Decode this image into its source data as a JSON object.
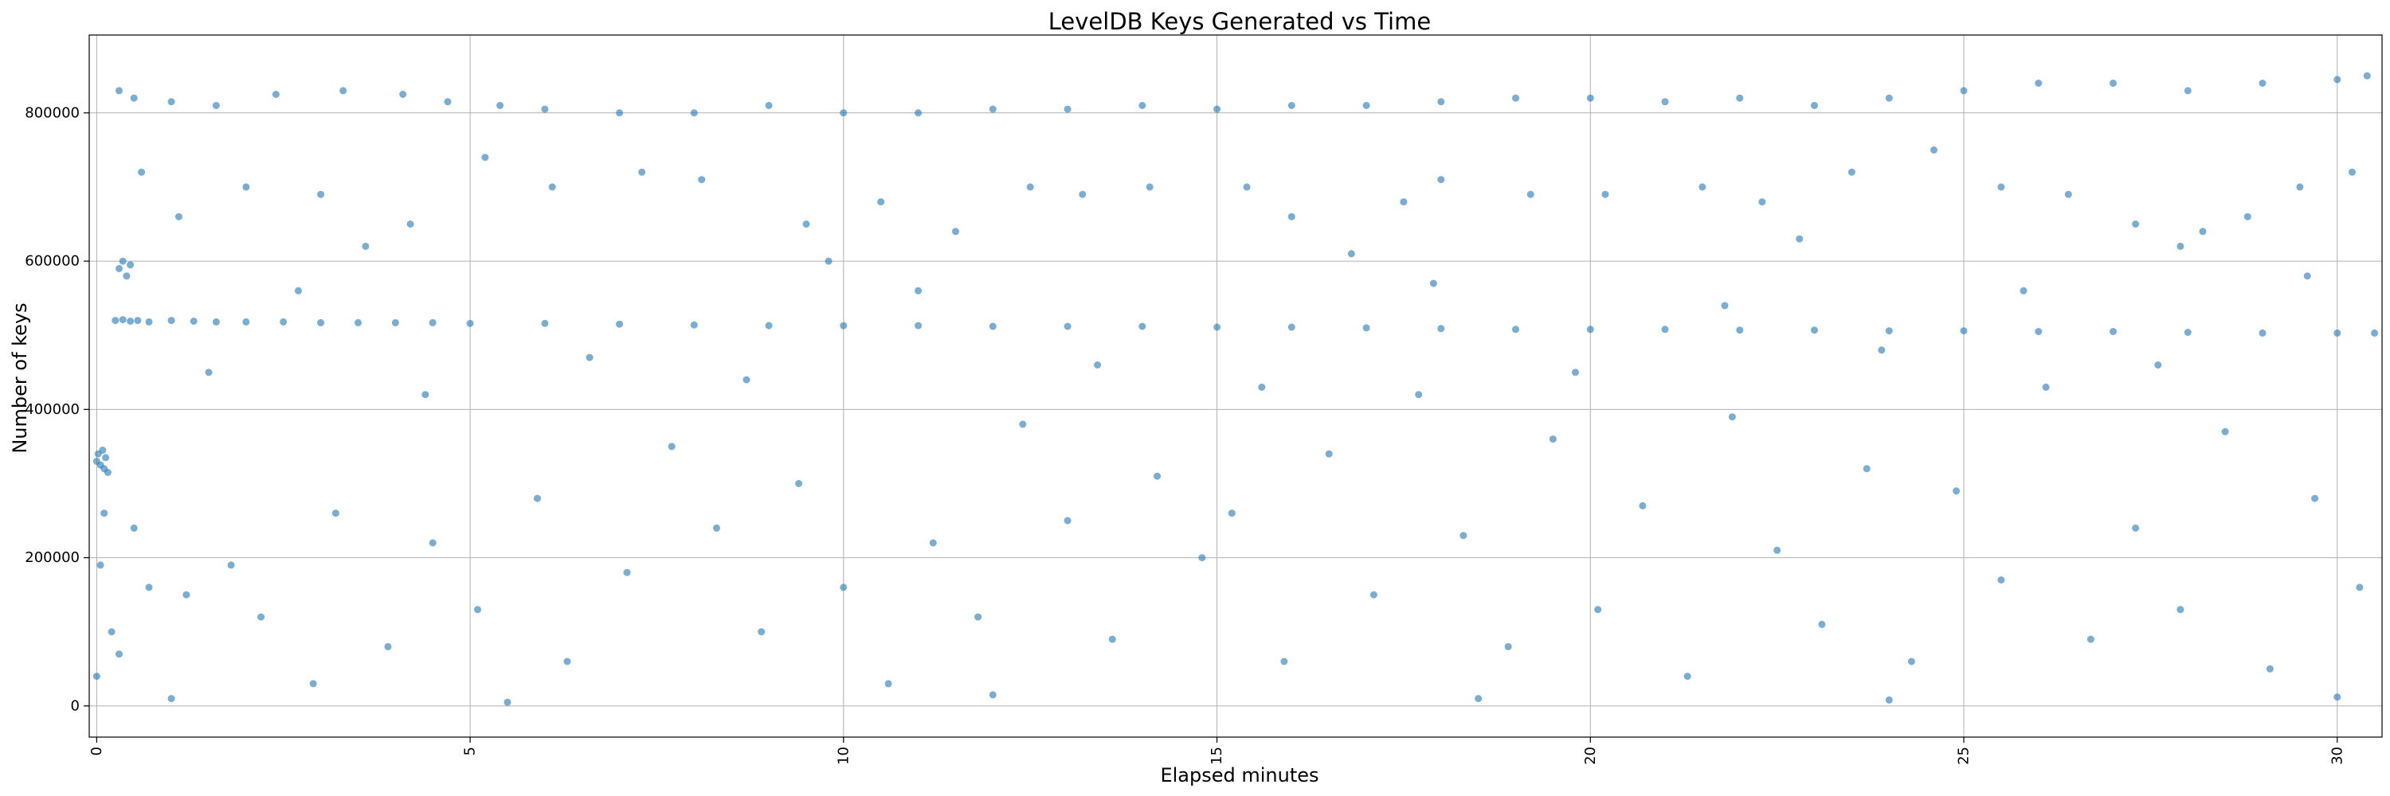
{
  "chart_data": {
    "type": "scatter",
    "title": "LevelDB Keys Generated vs Time",
    "xlabel": "Elapsed minutes",
    "ylabel": "Number of keys",
    "xlim": [
      -0.1,
      30.6
    ],
    "ylim": [
      -42000,
      905000
    ],
    "xticks": [
      0,
      5,
      10,
      15,
      20,
      25,
      30
    ],
    "yticks": [
      0,
      200000,
      400000,
      600000,
      800000
    ],
    "grid": true,
    "legend": "none",
    "marker_color": "#1f77b4",
    "marker_alpha": 0.6,
    "series": [
      {
        "points": [
          [
            0.0,
            330000
          ],
          [
            0.02,
            340000
          ],
          [
            0.05,
            325000
          ],
          [
            0.08,
            345000
          ],
          [
            0.1,
            320000
          ],
          [
            0.12,
            335000
          ],
          [
            0.15,
            315000
          ],
          [
            0.0,
            40000
          ],
          [
            0.05,
            190000
          ],
          [
            0.1,
            260000
          ],
          [
            0.25,
            520000
          ],
          [
            0.35,
            521000
          ],
          [
            0.45,
            519000
          ],
          [
            0.55,
            520000
          ],
          [
            0.7,
            518000
          ],
          [
            1.0,
            520000
          ],
          [
            1.3,
            519000
          ],
          [
            1.6,
            518000
          ],
          [
            2.0,
            518000
          ],
          [
            2.5,
            518000
          ],
          [
            3.0,
            517000
          ],
          [
            3.5,
            517000
          ],
          [
            4.0,
            517000
          ],
          [
            4.5,
            517000
          ],
          [
            5.0,
            516000
          ],
          [
            6.0,
            516000
          ],
          [
            7.0,
            515000
          ],
          [
            8.0,
            514000
          ],
          [
            9.0,
            513000
          ],
          [
            10.0,
            513000
          ],
          [
            11.0,
            513000
          ],
          [
            12.0,
            512000
          ],
          [
            13.0,
            512000
          ],
          [
            14.0,
            512000
          ],
          [
            15.0,
            511000
          ],
          [
            16.0,
            511000
          ],
          [
            17.0,
            510000
          ],
          [
            18.0,
            509000
          ],
          [
            19.0,
            508000
          ],
          [
            20.0,
            508000
          ],
          [
            21.0,
            508000
          ],
          [
            22.0,
            507000
          ],
          [
            23.0,
            507000
          ],
          [
            24.0,
            506000
          ],
          [
            25.0,
            506000
          ],
          [
            26.0,
            505000
          ],
          [
            27.0,
            505000
          ],
          [
            28.0,
            504000
          ],
          [
            29.0,
            503000
          ],
          [
            30.0,
            503000
          ],
          [
            30.5,
            503000
          ],
          [
            0.3,
            590000
          ],
          [
            0.35,
            600000
          ],
          [
            0.4,
            580000
          ],
          [
            0.45,
            595000
          ],
          [
            0.3,
            830000
          ],
          [
            0.5,
            820000
          ],
          [
            1.0,
            815000
          ],
          [
            1.6,
            810000
          ],
          [
            2.4,
            825000
          ],
          [
            3.3,
            830000
          ],
          [
            4.1,
            825000
          ],
          [
            4.7,
            815000
          ],
          [
            5.4,
            810000
          ],
          [
            6.0,
            805000
          ],
          [
            7.0,
            800000
          ],
          [
            8.0,
            800000
          ],
          [
            9.0,
            810000
          ],
          [
            10.0,
            800000
          ],
          [
            11.0,
            800000
          ],
          [
            12.0,
            805000
          ],
          [
            13.0,
            805000
          ],
          [
            14.0,
            810000
          ],
          [
            15.0,
            805000
          ],
          [
            16.0,
            810000
          ],
          [
            17.0,
            810000
          ],
          [
            18.0,
            815000
          ],
          [
            19.0,
            820000
          ],
          [
            20.0,
            820000
          ],
          [
            21.0,
            815000
          ],
          [
            22.0,
            820000
          ],
          [
            23.0,
            810000
          ],
          [
            24.0,
            820000
          ],
          [
            25.0,
            830000
          ],
          [
            26.0,
            840000
          ],
          [
            27.0,
            840000
          ],
          [
            28.0,
            830000
          ],
          [
            29.0,
            840000
          ],
          [
            30.0,
            845000
          ],
          [
            30.4,
            850000
          ],
          [
            0.6,
            720000
          ],
          [
            1.1,
            660000
          ],
          [
            2.0,
            700000
          ],
          [
            3.0,
            690000
          ],
          [
            4.2,
            650000
          ],
          [
            5.2,
            740000
          ],
          [
            6.1,
            700000
          ],
          [
            7.3,
            720000
          ],
          [
            8.1,
            710000
          ],
          [
            9.5,
            650000
          ],
          [
            10.5,
            680000
          ],
          [
            11.5,
            640000
          ],
          [
            12.5,
            700000
          ],
          [
            13.2,
            690000
          ],
          [
            14.1,
            700000
          ],
          [
            15.4,
            700000
          ],
          [
            16.0,
            660000
          ],
          [
            17.5,
            680000
          ],
          [
            18.0,
            710000
          ],
          [
            19.2,
            690000
          ],
          [
            20.2,
            690000
          ],
          [
            21.5,
            700000
          ],
          [
            22.3,
            680000
          ],
          [
            23.5,
            720000
          ],
          [
            24.6,
            750000
          ],
          [
            25.5,
            700000
          ],
          [
            26.4,
            690000
          ],
          [
            27.3,
            650000
          ],
          [
            27.9,
            620000
          ],
          [
            28.8,
            660000
          ],
          [
            29.5,
            700000
          ],
          [
            30.2,
            720000
          ],
          [
            0.2,
            100000
          ],
          [
            0.3,
            70000
          ],
          [
            0.5,
            240000
          ],
          [
            0.7,
            160000
          ],
          [
            1.2,
            150000
          ],
          [
            1.8,
            190000
          ],
          [
            2.2,
            120000
          ],
          [
            2.9,
            30000
          ],
          [
            3.2,
            260000
          ],
          [
            3.9,
            80000
          ],
          [
            4.5,
            220000
          ],
          [
            5.1,
            130000
          ],
          [
            5.9,
            280000
          ],
          [
            6.3,
            60000
          ],
          [
            7.1,
            180000
          ],
          [
            7.7,
            350000
          ],
          [
            8.3,
            240000
          ],
          [
            8.9,
            100000
          ],
          [
            9.4,
            300000
          ],
          [
            10.0,
            160000
          ],
          [
            10.6,
            30000
          ],
          [
            11.2,
            220000
          ],
          [
            11.8,
            120000
          ],
          [
            12.4,
            380000
          ],
          [
            13.0,
            250000
          ],
          [
            13.6,
            90000
          ],
          [
            14.2,
            310000
          ],
          [
            14.8,
            200000
          ],
          [
            15.2,
            260000
          ],
          [
            15.9,
            60000
          ],
          [
            16.5,
            340000
          ],
          [
            17.1,
            150000
          ],
          [
            17.7,
            420000
          ],
          [
            18.3,
            230000
          ],
          [
            18.9,
            80000
          ],
          [
            19.5,
            360000
          ],
          [
            20.1,
            130000
          ],
          [
            20.7,
            270000
          ],
          [
            21.3,
            40000
          ],
          [
            21.9,
            390000
          ],
          [
            22.5,
            210000
          ],
          [
            23.1,
            110000
          ],
          [
            23.7,
            320000
          ],
          [
            24.3,
            60000
          ],
          [
            24.9,
            290000
          ],
          [
            25.5,
            170000
          ],
          [
            26.1,
            430000
          ],
          [
            26.7,
            90000
          ],
          [
            27.3,
            240000
          ],
          [
            27.9,
            130000
          ],
          [
            28.5,
            370000
          ],
          [
            29.1,
            50000
          ],
          [
            29.7,
            280000
          ],
          [
            30.3,
            160000
          ],
          [
            1.5,
            450000
          ],
          [
            2.7,
            560000
          ],
          [
            4.4,
            420000
          ],
          [
            6.6,
            470000
          ],
          [
            8.7,
            440000
          ],
          [
            11.0,
            560000
          ],
          [
            13.4,
            460000
          ],
          [
            15.6,
            430000
          ],
          [
            17.9,
            570000
          ],
          [
            19.8,
            450000
          ],
          [
            21.8,
            540000
          ],
          [
            23.9,
            480000
          ],
          [
            25.8,
            560000
          ],
          [
            27.6,
            460000
          ],
          [
            29.6,
            580000
          ],
          [
            3.6,
            620000
          ],
          [
            9.8,
            600000
          ],
          [
            16.8,
            610000
          ],
          [
            22.8,
            630000
          ],
          [
            28.2,
            640000
          ],
          [
            1.0,
            10000
          ],
          [
            5.5,
            5000
          ],
          [
            12.0,
            15000
          ],
          [
            18.5,
            10000
          ],
          [
            24.0,
            8000
          ],
          [
            30.0,
            12000
          ]
        ]
      }
    ]
  }
}
